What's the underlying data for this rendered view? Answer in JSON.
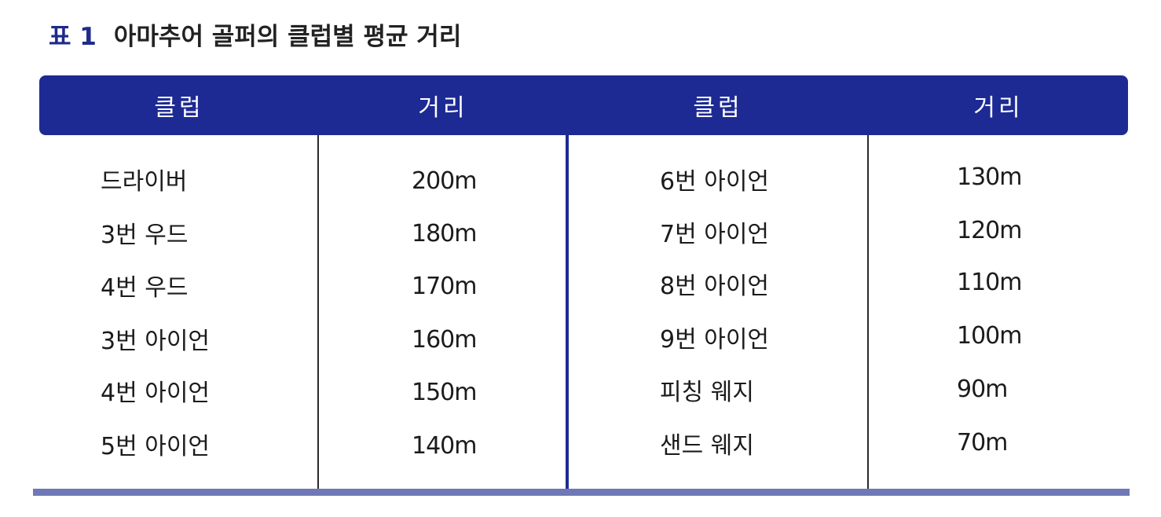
{
  "caption": {
    "label": "표 1",
    "title": "아마추어 골퍼의 클럽별 평균 거리"
  },
  "table": {
    "headers": [
      "클럽",
      "거리",
      "클럽",
      "거리"
    ],
    "left_rows": [
      {
        "club": "드라이버",
        "distance": "200m"
      },
      {
        "club": "3번 우드",
        "distance": "180m"
      },
      {
        "club": "4번 우드",
        "distance": "170m"
      },
      {
        "club": "3번 아이언",
        "distance": "160m"
      },
      {
        "club": "4번 아이언",
        "distance": "150m"
      },
      {
        "club": "5번 아이언",
        "distance": "140m"
      }
    ],
    "right_rows": [
      {
        "club": "6번 아이언",
        "distance": "130m"
      },
      {
        "club": "7번 아이언",
        "distance": "120m"
      },
      {
        "club": "8번 아이언",
        "distance": "110m"
      },
      {
        "club": "9번 아이언",
        "distance": "100m"
      },
      {
        "club": "피칭 웨지",
        "distance": "90m"
      },
      {
        "club": "샌드 웨지",
        "distance": "70m"
      }
    ]
  },
  "colors": {
    "header_background": "#1d2a93",
    "header_text": "#ffffff",
    "caption_label": "#1e2b8a",
    "bottom_rule": "#6f78b6"
  }
}
